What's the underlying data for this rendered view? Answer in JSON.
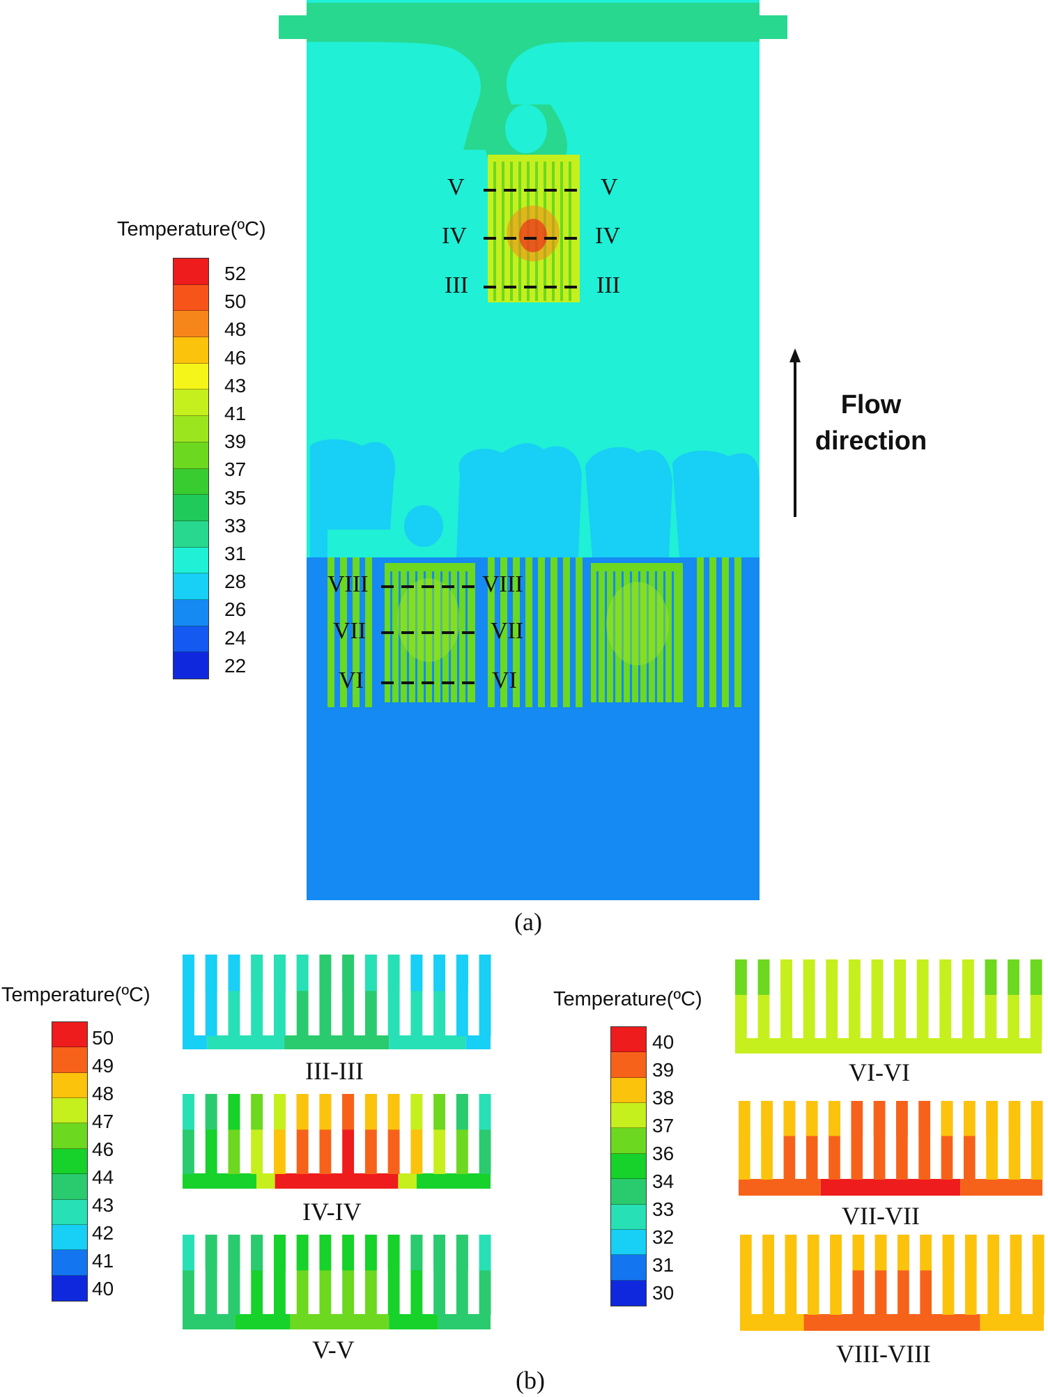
{
  "figure": {
    "caption_a": "(a)",
    "caption_b": "(b)"
  },
  "legend_a": {
    "title": "Temperature(ºC)",
    "labels": [
      "52",
      "50",
      "48",
      "46",
      "43",
      "41",
      "39",
      "37",
      "35",
      "33",
      "31",
      "28",
      "26",
      "24",
      "22"
    ],
    "colors": [
      "#ee1c1c",
      "#f7541a",
      "#f7861a",
      "#fcc30c",
      "#f5f51a",
      "#c6ef1e",
      "#9be51f",
      "#6cd81f",
      "#38cc30",
      "#1fc95a",
      "#28d88f",
      "#1ff0d6",
      "#18cff5",
      "#148af2",
      "#1459f0",
      "#1028dd"
    ]
  },
  "legend_b1": {
    "title": "Temperature(ºC)",
    "labels": [
      "50",
      "49",
      "48",
      "47",
      "46",
      "44",
      "43",
      "42",
      "41",
      "40"
    ],
    "colors": [
      "#ee1c1c",
      "#f7621a",
      "#fcc30c",
      "#c6ef1e",
      "#6cd81f",
      "#16d22a",
      "#2acb6e",
      "#28e0b5",
      "#18cff5",
      "#1475f0",
      "#1028dd"
    ]
  },
  "legend_b2": {
    "title": "Temperature(ºC)",
    "labels": [
      "40",
      "39",
      "38",
      "37",
      "36",
      "34",
      "33",
      "32",
      "31",
      "30"
    ],
    "colors": [
      "#ee1c1c",
      "#f7621a",
      "#fcc30c",
      "#c6ef1e",
      "#6cd81f",
      "#16d22a",
      "#2acb6e",
      "#28e0b5",
      "#18cff5",
      "#1475f0",
      "#1028dd"
    ]
  },
  "section_markers": [
    {
      "left": "V",
      "right": "V"
    },
    {
      "left": "IV",
      "right": "IV"
    },
    {
      "left": "III",
      "right": "III"
    },
    {
      "left": "VIII",
      "right": "VIII"
    },
    {
      "left": "VII",
      "right": "VII"
    },
    {
      "left": "VI",
      "right": "VI"
    }
  ],
  "flow": {
    "line1": "Flow",
    "line2": "direction"
  },
  "sections": [
    {
      "label": "III-III"
    },
    {
      "label": "IV-IV"
    },
    {
      "label": "V-V"
    },
    {
      "label": "VI-VI"
    },
    {
      "label": "VII-VII"
    },
    {
      "label": "VIII-VIII"
    }
  ],
  "colors": {
    "inlet_blue": "#148af2",
    "ambient_cyan": "#1ff0d6",
    "wake_blue": "#18cff5",
    "top_green": "#28d88f"
  }
}
